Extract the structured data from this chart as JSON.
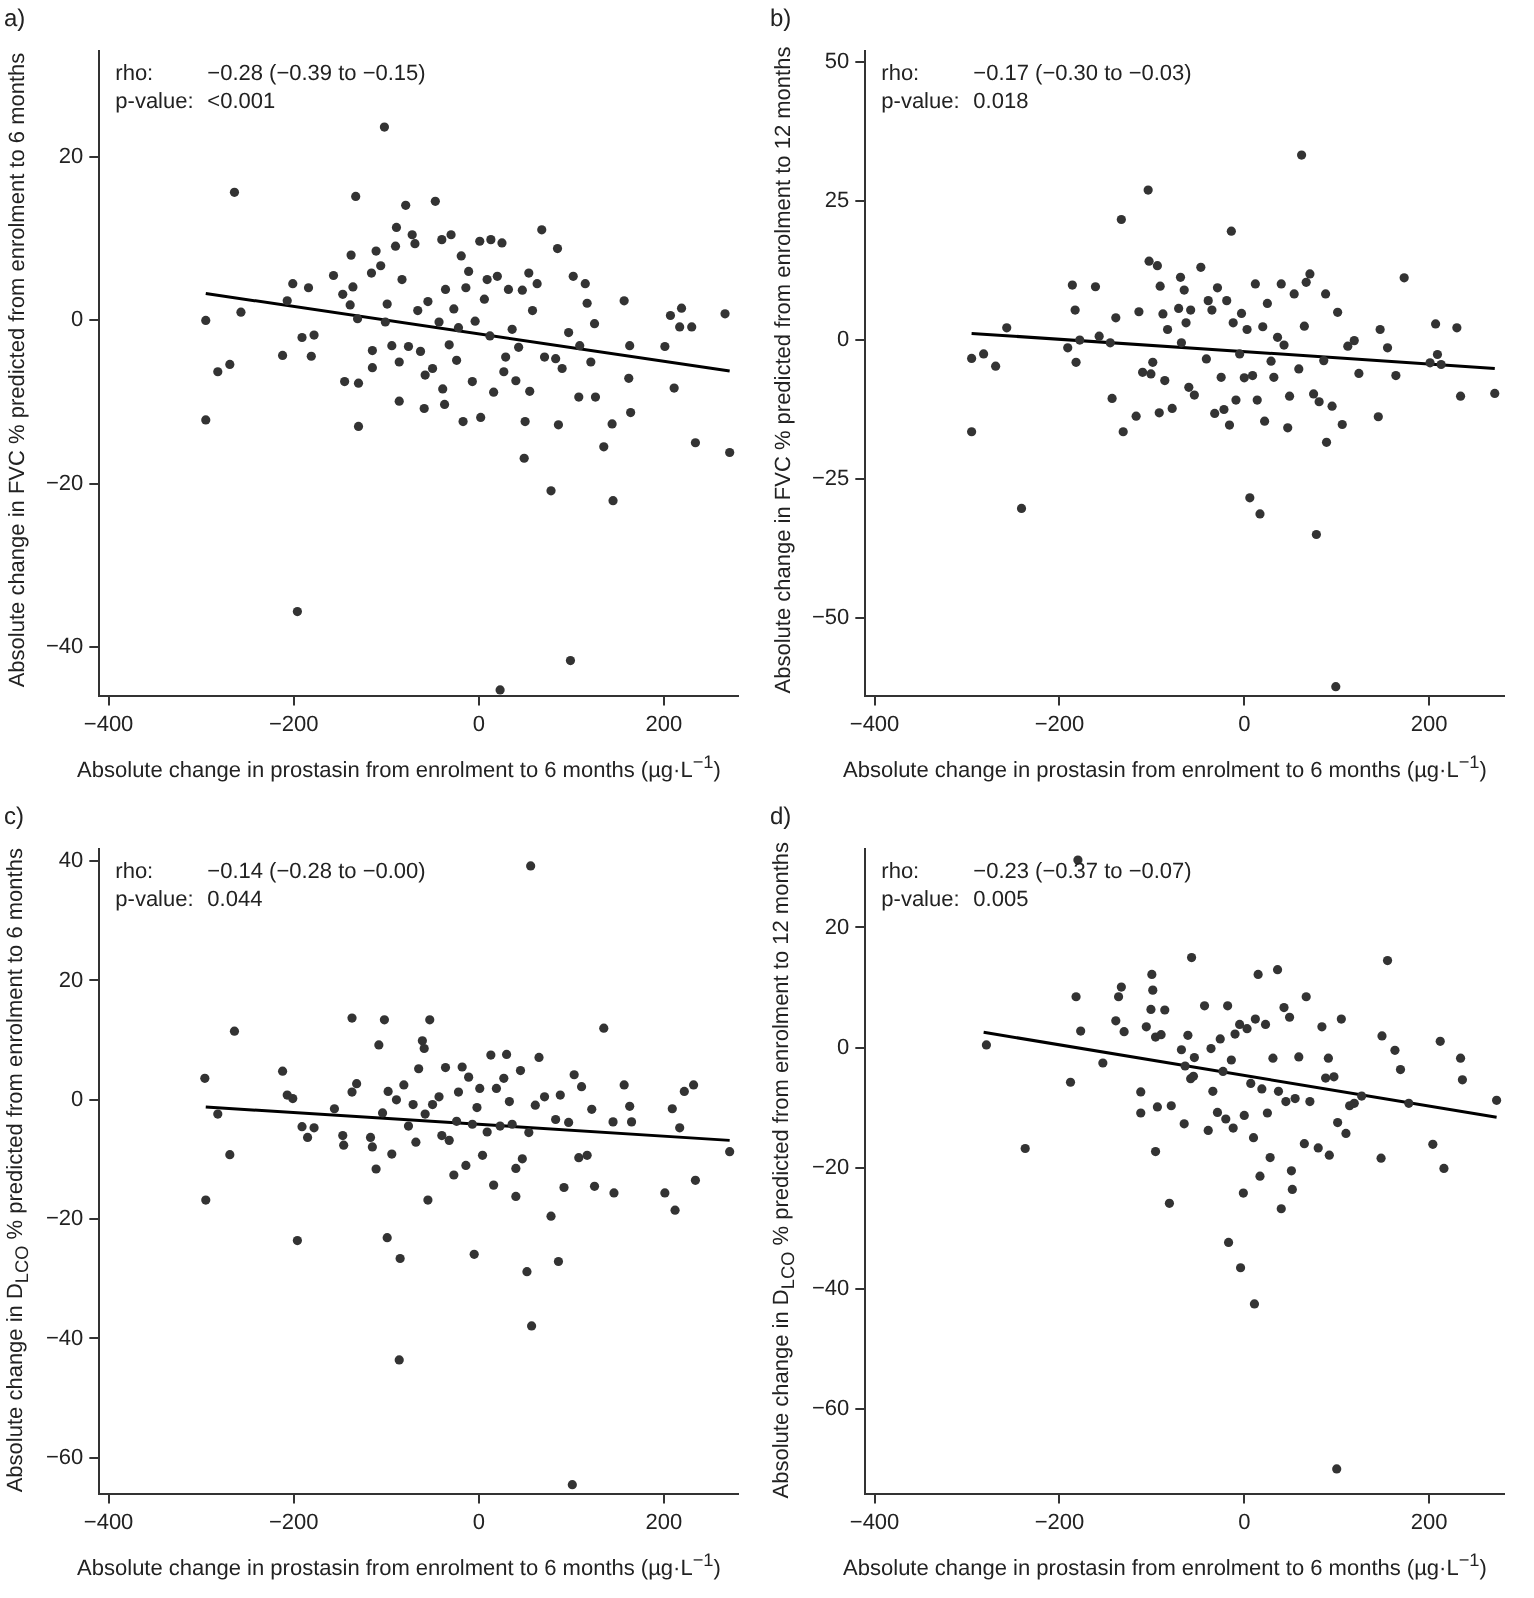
{
  "chart_data": [
    {
      "type": "scatter",
      "title": "a)",
      "xlabel": "Absolute change in prostasin from enrolment to 6 months (µg·L$^{−1}$)",
      "ylabel": "Absolute change in FVC % predicted from enrolment to 6 months",
      "annotations": [
        "rho:",
        "−0.28 (−0.39 to −0.15)",
        "p-value:",
        "<0.001"
      ],
      "xlim": [
        -410,
        280
      ],
      "xticks": [
        -400,
        -200,
        0,
        200
      ],
      "ylim": [
        -46,
        33
      ],
      "yticks": [
        -40,
        -20,
        0,
        20
      ],
      "marker": "circle",
      "series": [
        {
          "color": "#333333",
          "x": [
            -295,
            -295,
            -282,
            -269,
            -264,
            -257,
            -212,
            -207,
            -201,
            -196,
            -191,
            -184,
            -181,
            -178,
            -157,
            -147,
            -145,
            -139,
            -138,
            -136,
            -133,
            -131,
            -130,
            -130,
            -116,
            -115,
            -115,
            -111,
            -106,
            -102,
            -101,
            -99,
            -94,
            -90,
            -89,
            -86,
            -86,
            -83,
            -79,
            -76,
            -72,
            -69,
            -66,
            -63,
            -59,
            -58,
            -55,
            -50,
            -47,
            -43,
            -40,
            -39,
            -37,
            -36,
            -32,
            -30,
            -27,
            -24,
            -22,
            -19,
            -17,
            -14,
            -11,
            -7,
            -4,
            1,
            2,
            6,
            9,
            12,
            13,
            16,
            20,
            23,
            25,
            27,
            29,
            32,
            36,
            40,
            43,
            47,
            49,
            50,
            54,
            55,
            58,
            63,
            68,
            71,
            78,
            83,
            85,
            86,
            90,
            97,
            99,
            102,
            108,
            109,
            115,
            117,
            121,
            125,
            126,
            135,
            144,
            145,
            157,
            162,
            163,
            164,
            201,
            207,
            211,
            217,
            219,
            230,
            234,
            266,
            271
          ],
          "values": [
            0,
            -12.2,
            -6.3,
            -5.4,
            15.7,
            1.0,
            -4.3,
            2.4,
            4.5,
            -35.7,
            -2.1,
            4.0,
            -4.4,
            -1.8,
            5.5,
            3.2,
            -7.5,
            1.9,
            8.0,
            4.1,
            15.2,
            0.2,
            -7.7,
            -13.0,
            5.8,
            -3.7,
            -5.8,
            8.5,
            6.7,
            23.7,
            -0.2,
            2.0,
            -3.1,
            9.1,
            11.4,
            -5.1,
            -9.9,
            5.0,
            14.1,
            -3.2,
            10.5,
            9.4,
            1.2,
            -3.8,
            -10.8,
            -6.7,
            2.3,
            -5.9,
            14.6,
            -0.2,
            9.9,
            -8.4,
            -10.3,
            3.8,
            -3.0,
            10.5,
            1.4,
            -4.9,
            -0.9,
            7.9,
            -12.4,
            4.0,
            6.0,
            -7.5,
            -0.1,
            9.7,
            -11.9,
            2.6,
            5.0,
            -1.9,
            9.9,
            -8.8,
            5.4,
            -45.3,
            9.5,
            -6.3,
            -4.5,
            3.8,
            -1.1,
            -7.4,
            -3.3,
            3.7,
            -16.9,
            -12.4,
            5.8,
            -8.7,
            1.2,
            4.5,
            11.1,
            -4.5,
            -20.9,
            -4.7,
            8.8,
            -12.8,
            -5.9,
            -1.5,
            -41.7,
            5.4,
            -9.4,
            -3.1,
            4.5,
            2.1,
            -5.1,
            -0.4,
            -9.4,
            -15.5,
            -12.7,
            -22.1,
            2.4,
            -7.1,
            -3.1,
            -11.3,
            -3.2,
            0.6,
            -8.3,
            -0.8,
            1.5,
            -0.8,
            -15.0,
            0.8,
            -16.2
          ]
        },
        {
          "type": "line",
          "color": "#000000",
          "marker": "none",
          "x": [
            -295,
            271
          ],
          "values": [
            3.3,
            -6.2
          ]
        }
      ]
    },
    {
      "type": "scatter",
      "title": "b)",
      "xlabel": "Absolute change in prostasin from enrolment to 6 months (µg·L$^{−1}$)",
      "ylabel": "Absolute change in FVC % predicted from enrolment to 12 months",
      "annotations": [
        "rho:",
        "−0.17 (−0.30 to −0.03)",
        "p-value:",
        "0.018"
      ],
      "xlim": [
        -410,
        281
      ],
      "xticks": [
        -400,
        -200,
        0,
        200
      ],
      "ylim": [
        -64,
        52
      ],
      "yticks": [
        -50,
        -25,
        0,
        25,
        50
      ],
      "marker": "circle",
      "series": [
        {
          "color": "#333333",
          "x": [
            -295,
            -295,
            -282,
            -269,
            -257,
            -241,
            -191,
            -186,
            -183,
            -182,
            -178,
            -161,
            -157,
            -145,
            -143,
            -139,
            -133,
            -131,
            -117,
            -114,
            -110,
            -104,
            -103,
            -101,
            -99,
            -94,
            -92,
            -91,
            -88,
            -86,
            -83,
            -78,
            -71,
            -69,
            -68,
            -65,
            -63,
            -60,
            -58,
            -54,
            -47,
            -41,
            -39,
            -35,
            -32,
            -29,
            -25,
            -22,
            -19,
            -16,
            -14,
            -12,
            -9,
            -5,
            -3,
            0,
            3,
            6,
            9,
            12,
            14,
            17,
            20,
            22,
            25,
            29,
            32,
            36,
            40,
            43,
            47,
            49,
            54,
            59,
            62,
            65,
            67,
            71,
            75,
            78,
            81,
            86,
            88,
            89,
            95,
            99,
            101,
            106,
            112,
            119,
            124,
            145,
            147,
            155,
            164,
            173,
            201,
            207,
            209,
            213,
            230,
            234,
            271
          ],
          "values": [
            -3.3,
            -16.5,
            -2.5,
            -4.7,
            2.2,
            -30.3,
            -1.4,
            9.9,
            5.4,
            -4.0,
            0,
            9.6,
            0.7,
            -0.5,
            -10.5,
            4.0,
            21.7,
            -16.5,
            -13.7,
            5.1,
            -5.8,
            27.0,
            14.2,
            -6.1,
            -4.0,
            13.4,
            -13.1,
            9.7,
            4.7,
            -7.3,
            1.9,
            -12.3,
            5.7,
            11.3,
            -0.5,
            9.0,
            3.1,
            -8.5,
            5.4,
            -9.9,
            13.1,
            -3.4,
            7.1,
            5.4,
            -13.2,
            9.4,
            -6.7,
            -12.5,
            7.1,
            -15.3,
            19.6,
            3.1,
            -10.8,
            -2.5,
            4.8,
            -6.8,
            1.9,
            -28.4,
            -6.4,
            10.1,
            -10.8,
            -31.3,
            2.4,
            -14.6,
            6.6,
            -3.8,
            -6.7,
            0.5,
            10.1,
            -0.9,
            -15.8,
            -10.1,
            8.3,
            -5.2,
            33.3,
            2.5,
            10.4,
            11.9,
            -9.7,
            -35.0,
            -11.1,
            -3.7,
            8.3,
            -18.4,
            -11.9,
            -62.4,
            5.0,
            -15.2,
            -1.1,
            -0.1,
            -6.0,
            -13.8,
            1.9,
            -1.4,
            -6.4,
            11.2,
            -4.1,
            2.9,
            -2.6,
            -4.4,
            2.2,
            -10.1,
            -9.6
          ]
        },
        {
          "type": "line",
          "color": "#000000",
          "marker": "none",
          "x": [
            -295,
            271
          ],
          "values": [
            1.2,
            -5.1
          ]
        }
      ]
    },
    {
      "type": "scatter",
      "title": "c)",
      "xlabel": "Absolute change in prostasin from enrolment to 6 months (µg·L$^{−1}$)",
      "ylabel": "Absolute change in D$_{LCO}$ % predicted from enrolment to 6 months",
      "annotations": [
        "rho:",
        "−0.14 (−0.28 to −0.00)",
        "p-value:",
        "0.044"
      ],
      "xlim": [
        -410,
        280
      ],
      "xticks": [
        -400,
        -200,
        0,
        200
      ],
      "ylim": [
        -66,
        42
      ],
      "yticks": [
        -60,
        -40,
        -20,
        0,
        20,
        40
      ],
      "marker": "circle",
      "series": [
        {
          "color": "#333333",
          "x": [
            -296,
            -295,
            -282,
            -269,
            -264,
            -212,
            -207,
            -201,
            -196,
            -191,
            -185,
            -178,
            -156,
            -147,
            -146,
            -137,
            -137,
            -132,
            -117,
            -115,
            -111,
            -108,
            -104,
            -102,
            -99,
            -98,
            -94,
            -89,
            -86,
            -85,
            -81,
            -76,
            -71,
            -68,
            -65,
            -61,
            -59,
            -58,
            -55,
            -53,
            -50,
            -43,
            -40,
            -36,
            -32,
            -27,
            -24,
            -22,
            -18,
            -14,
            -11,
            -7,
            -5,
            -2,
            1,
            4,
            9,
            13,
            16,
            19,
            23,
            27,
            30,
            33,
            36,
            40,
            40,
            45,
            47,
            52,
            54,
            56,
            57,
            61,
            65,
            71,
            78,
            83,
            86,
            88,
            92,
            97,
            101,
            103,
            108,
            111,
            117,
            122,
            125,
            135,
            145,
            146,
            157,
            163,
            165,
            201,
            209,
            212,
            217,
            222,
            232,
            234,
            271
          ],
          "values": [
            3.6,
            -16.8,
            -2.4,
            -9.2,
            11.5,
            4.8,
            0.8,
            0.2,
            -23.6,
            -4.5,
            -6.3,
            -4.7,
            -1.5,
            -6.0,
            -7.6,
            1.3,
            13.7,
            2.7,
            -6.3,
            -7.9,
            -11.6,
            9.2,
            -2.2,
            13.4,
            -23.1,
            1.4,
            -9.1,
            0,
            -43.6,
            -26.6,
            2.5,
            -4.4,
            -0.8,
            -7.1,
            5.2,
            9.9,
            8.6,
            -2.4,
            -16.8,
            13.4,
            -0.8,
            0.5,
            -6.0,
            5.4,
            -6.8,
            -12.6,
            -3.6,
            1.3,
            5.5,
            -11.0,
            3.8,
            -4.1,
            -25.9,
            -1.3,
            1.9,
            -9.3,
            -5.4,
            7.5,
            -14.3,
            1.9,
            -4.4,
            3.6,
            7.6,
            -0.3,
            -4.1,
            -11.5,
            -16.2,
            4.9,
            -9.9,
            -28.8,
            -5.5,
            39.2,
            -37.9,
            -0.9,
            7.1,
            0.5,
            -19.5,
            -3.3,
            -27.1,
            0.8,
            -14.7,
            -3.8,
            -64.5,
            4.2,
            -9.7,
            2.2,
            -9.3,
            -1.6,
            -14.5,
            12.0,
            -3.7,
            -15.6,
            2.5,
            -1.1,
            -3.7,
            -15.6,
            -1.5,
            -18.5,
            -4.7,
            1.4,
            2.5,
            -13.5,
            -8.7
          ]
        },
        {
          "type": "line",
          "color": "#000000",
          "marker": "none",
          "x": [
            -295,
            271
          ],
          "values": [
            -1.2,
            -6.8
          ]
        }
      ]
    },
    {
      "type": "scatter",
      "title": "d)",
      "xlabel": "Absolute change in prostasin from enrolment to 6 months (µg·L$^{−1}$)",
      "ylabel": "Absolute change in D$_{LCO}$ % predicted from enrolment to 12 months",
      "annotations": [
        "rho:",
        "−0.23 (−0.37 to −0.07)",
        "p-value:",
        "0.005"
      ],
      "xlim": [
        -410,
        281
      ],
      "xticks": [
        -400,
        -200,
        0,
        200
      ],
      "ylim": [
        -74,
        33
      ],
      "yticks": [
        -60,
        -40,
        -20,
        0,
        20
      ],
      "marker": "circle",
      "series": [
        {
          "color": "#333333",
          "x": [
            -279,
            -237,
            -188,
            -182,
            -180,
            -177,
            -153,
            -139,
            -136,
            -133,
            -130,
            -112,
            -112,
            -106,
            -101,
            -100,
            -99,
            -96,
            -96,
            -94,
            -90,
            -86,
            -81,
            -79,
            -68,
            -65,
            -64,
            -61,
            -58,
            -57,
            -55,
            -54,
            -43,
            -39,
            -36,
            -34,
            -29,
            -26,
            -23,
            -20,
            -18,
            -17,
            -14,
            -12,
            -10,
            -5,
            -4,
            -1,
            0,
            3,
            7,
            10,
            11,
            12,
            15,
            17,
            19,
            23,
            25,
            28,
            31,
            36,
            37,
            40,
            43,
            45,
            49,
            51,
            52,
            55,
            59,
            65,
            67,
            71,
            80,
            84,
            88,
            91,
            92,
            97,
            100,
            101,
            105,
            110,
            114,
            119,
            127,
            148,
            149,
            155,
            163,
            169,
            178,
            204,
            212,
            216,
            234,
            236,
            273
          ],
          "values": [
            0.5,
            -16.7,
            -5.7,
            8.5,
            31.2,
            2.8,
            -2.5,
            4.5,
            8.5,
            10.1,
            2.7,
            -7.3,
            -10.8,
            3.5,
            6.4,
            12.2,
            9.6,
            1.8,
            -17.2,
            -9.8,
            2.2,
            6.3,
            -25.8,
            -9.6,
            -0.3,
            -12.6,
            -3.0,
            2.1,
            -5.1,
            15.0,
            -4.7,
            -1.6,
            7.0,
            -13.7,
            -0.1,
            -7.2,
            -10.7,
            1.5,
            -3.9,
            -11.8,
            7.0,
            -32.3,
            -2.0,
            -13.3,
            2.3,
            3.9,
            -36.5,
            -24.1,
            -11.2,
            3.2,
            -5.9,
            -14.9,
            -42.5,
            4.8,
            12.2,
            -21.3,
            -6.8,
            3.9,
            -10.8,
            -18.2,
            -1.7,
            13.0,
            -7.2,
            -26.7,
            6.7,
            -8.9,
            5.1,
            -20.4,
            -23.5,
            -8.4,
            -1.5,
            -15.9,
            8.5,
            -8.9,
            -16.6,
            3.5,
            -5.0,
            -1.7,
            -17.8,
            -4.8,
            -69.9,
            -12.4,
            4.8,
            -14.2,
            -9.6,
            -9.2,
            -8.0,
            -18.3,
            2.0,
            14.5,
            -0.4,
            -3.6,
            -9.2,
            -16.0,
            1.1,
            -20.0,
            -1.7,
            -5.3,
            -8.7
          ]
        },
        {
          "type": "line",
          "color": "#000000",
          "marker": "none",
          "x": [
            -282,
            273
          ],
          "values": [
            2.6,
            -11.5
          ]
        }
      ]
    }
  ]
}
